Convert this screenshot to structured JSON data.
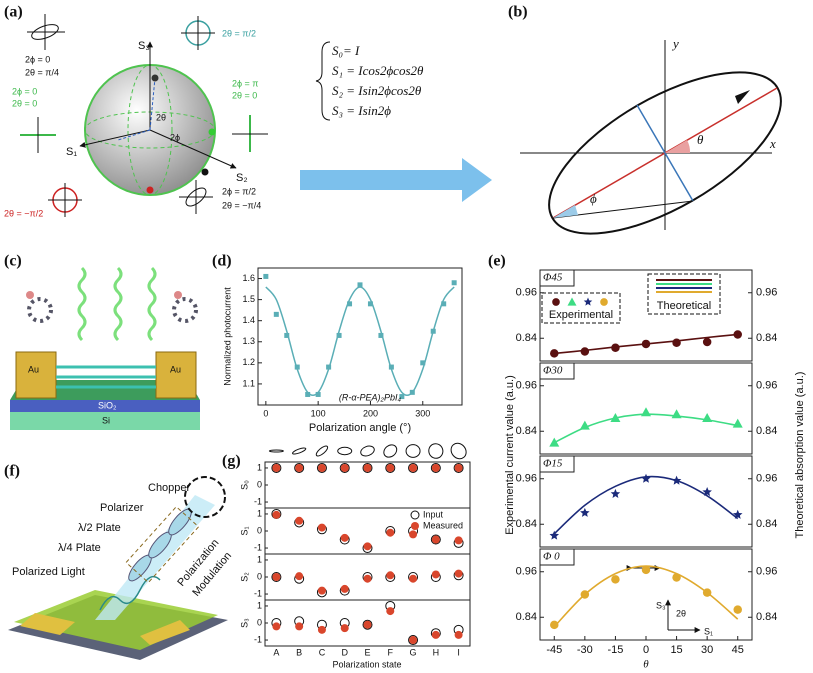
{
  "panel_labels": [
    "(a)",
    "(b)",
    "(c)",
    "(d)",
    "(e)",
    "(f)",
    "(g)"
  ],
  "sphere": {
    "axes": [
      "S₃",
      "S₁",
      "S₂"
    ],
    "angles": [
      "2θ",
      "2ϕ"
    ],
    "states": [
      [
        "2ϕ = 0",
        "2θ = π/4"
      ],
      [
        "2θ = π/2"
      ],
      [
        "2ϕ = 0",
        "2θ = 0"
      ],
      [
        "2ϕ = π",
        "2θ = 0"
      ],
      [
        "2θ = −π/2"
      ],
      [
        "2ϕ = π/2",
        "2θ = −π/4"
      ]
    ]
  },
  "equations": [
    "S₀= I",
    "S₁ = Icos2ϕcos2θ",
    "S₂ = Isin2ϕcos2θ",
    "S₃ = Isin2ϕ"
  ],
  "ellipse": {
    "axes": [
      "x",
      "y"
    ],
    "angles": [
      "θ",
      "ϕ"
    ]
  },
  "device": {
    "electrodes": [
      "Au",
      "Au"
    ],
    "layers": [
      "SiO₂",
      "Si"
    ]
  },
  "setup": {
    "labels": [
      "Chopper",
      "Polarizer",
      "λ/2 Plate",
      "λ/4 Plate",
      "Polarized Light"
    ],
    "modulation": [
      "Polarization",
      "Modulation"
    ]
  },
  "panel_e": {
    "legend": [
      "Experimental",
      "Theoretical"
    ],
    "ylabel": "Experimental  current value (a.u.)",
    "y2label": "Theoretical absorption value (a.u.)",
    "xlabel": "θ",
    "annotations": [
      "S₃",
      "2θ",
      "S₁"
    ]
  },
  "panel_g": {
    "categories": [
      "A",
      "B",
      "C",
      "D",
      "E",
      "F",
      "G",
      "H",
      "I"
    ],
    "xlabel": "Polarization state",
    "legend": [
      "Input",
      "Measured"
    ]
  },
  "chart_data": [
    {
      "type": "scatter",
      "xlabel": "Polarization angle (°)",
      "ylabel": "Normalized photocurrent",
      "annotation": "(R-α-PEA)₂PbI₄",
      "color": "#5aaeb6",
      "x": [
        0,
        20,
        40,
        60,
        80,
        100,
        120,
        140,
        160,
        180,
        200,
        220,
        240,
        260,
        280,
        300,
        320,
        340,
        360
      ],
      "values": [
        1.61,
        1.43,
        1.33,
        1.18,
        1.05,
        1.05,
        1.18,
        1.33,
        1.48,
        1.57,
        1.48,
        1.33,
        1.18,
        1.04,
        1.06,
        1.2,
        1.35,
        1.48,
        1.58
      ],
      "fit": [
        1.56,
        1.5,
        1.35,
        1.17,
        1.06,
        1.06,
        1.17,
        1.35,
        1.5,
        1.56,
        1.5,
        1.35,
        1.17,
        1.06,
        1.06,
        1.17,
        1.35,
        1.5,
        1.56
      ],
      "xlim": [
        -15,
        375
      ],
      "ylim": [
        1.0,
        1.65
      ],
      "xticks": [
        0,
        100,
        200,
        300
      ],
      "yticks": [
        1.1,
        1.2,
        1.3,
        1.4,
        1.5,
        1.6
      ]
    },
    {
      "type": "line",
      "title": "Φ45",
      "color": "#5a1010",
      "marker": "circle",
      "x": [
        -45,
        -30,
        -15,
        0,
        15,
        30,
        45
      ],
      "experimental": [
        0.8,
        0.805,
        0.815,
        0.825,
        0.828,
        0.83,
        0.85
      ],
      "theoretical": [
        0.8,
        0.808,
        0.817,
        0.825,
        0.833,
        0.842,
        0.85
      ],
      "xlim": [
        -52,
        52
      ],
      "ylim": [
        0.78,
        1.02
      ],
      "yticks": [
        0.84,
        0.96
      ],
      "y2lim": [
        0.78,
        1.02
      ],
      "y2ticks": [
        0.84,
        0.96
      ]
    },
    {
      "type": "line",
      "title": "Φ30",
      "color": "#3ddc84",
      "marker": "triangle",
      "x": [
        -45,
        -30,
        -15,
        0,
        15,
        30,
        45
      ],
      "experimental": [
        0.81,
        0.855,
        0.875,
        0.89,
        0.885,
        0.875,
        0.86
      ],
      "theoretical": [
        0.81,
        0.85,
        0.875,
        0.885,
        0.88,
        0.87,
        0.855
      ],
      "xlim": [
        -52,
        52
      ],
      "ylim": [
        0.78,
        1.02
      ],
      "yticks": [
        0.84,
        0.96
      ],
      "y2lim": [
        0.78,
        1.02
      ],
      "y2ticks": [
        0.84,
        0.96
      ]
    },
    {
      "type": "line",
      "title": "Φ15",
      "color": "#1b2a7a",
      "marker": "star",
      "x": [
        -45,
        -30,
        -15,
        0,
        15,
        30,
        45
      ],
      "experimental": [
        0.81,
        0.87,
        0.92,
        0.96,
        0.955,
        0.925,
        0.865
      ],
      "theoretical": [
        0.815,
        0.89,
        0.94,
        0.965,
        0.955,
        0.915,
        0.855
      ],
      "xlim": [
        -52,
        52
      ],
      "ylim": [
        0.78,
        1.02
      ],
      "yticks": [
        0.84,
        0.96
      ],
      "y2lim": [
        0.78,
        1.02
      ],
      "y2ticks": [
        0.84,
        0.96
      ]
    },
    {
      "type": "line",
      "title": "Φ 0",
      "color": "#e0aa2e",
      "marker": "circle",
      "x": [
        -45,
        -30,
        -15,
        0,
        15,
        30,
        45
      ],
      "experimental": [
        0.82,
        0.9,
        0.94,
        0.965,
        0.945,
        0.905,
        0.86
      ],
      "theoretical": [
        0.815,
        0.9,
        0.955,
        0.975,
        0.955,
        0.905,
        0.835
      ],
      "xlim": [
        -52,
        52
      ],
      "ylim": [
        0.78,
        1.02
      ],
      "yticks": [
        0.84,
        0.96
      ],
      "y2lim": [
        0.78,
        1.02
      ],
      "y2ticks": [
        0.84,
        0.96
      ],
      "xticks": [
        -45,
        -30,
        -15,
        0,
        15,
        30,
        45
      ]
    },
    {
      "type": "dot",
      "ylabel": "S₀",
      "input": [
        1,
        1,
        1,
        1,
        1,
        1,
        1,
        1,
        1
      ],
      "measured": [
        1,
        1,
        1,
        1,
        1,
        1,
        1,
        1,
        1
      ],
      "ylim": [
        -1.35,
        1.35
      ],
      "yticks": [
        -1,
        0,
        1
      ]
    },
    {
      "type": "dot",
      "ylabel": "S₁",
      "input": [
        1,
        0.5,
        0.1,
        -0.5,
        -1,
        0,
        0,
        -0.5,
        -0.7
      ],
      "measured": [
        0.95,
        0.6,
        0.2,
        -0.4,
        -0.9,
        -0.1,
        -0.2,
        -0.5,
        -0.55
      ],
      "ylim": [
        -1.35,
        1.35
      ],
      "yticks": [
        -1,
        0,
        1
      ]
    },
    {
      "type": "dot",
      "ylabel": "S₂",
      "input": [
        0,
        -0.1,
        -0.9,
        -0.8,
        0,
        0,
        0,
        0,
        0.1
      ],
      "measured": [
        0,
        0.05,
        -0.8,
        -0.7,
        -0.1,
        0.1,
        -0.1,
        0.15,
        0.2
      ],
      "ylim": [
        -1.35,
        1.35
      ],
      "yticks": [
        -1,
        0,
        1
      ]
    },
    {
      "type": "dot",
      "ylabel": "S₃",
      "input": [
        0,
        0.1,
        -0.1,
        0,
        -0.1,
        1,
        -1,
        -0.6,
        -0.4
      ],
      "measured": [
        -0.2,
        -0.2,
        -0.4,
        -0.3,
        -0.1,
        0.7,
        -1,
        -0.7,
        -0.7
      ],
      "ylim": [
        -1.35,
        1.35
      ],
      "yticks": [
        -1,
        0,
        1
      ]
    }
  ]
}
